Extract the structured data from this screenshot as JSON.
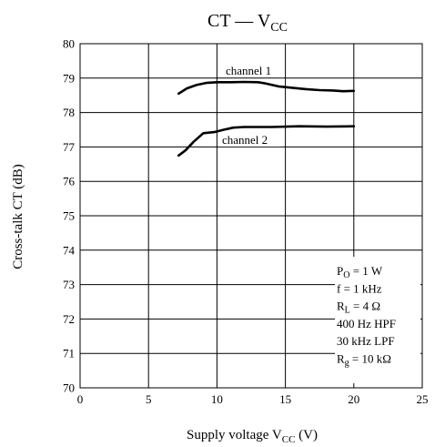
{
  "chart_data": {
    "type": "line",
    "title": {
      "main": "CT — V",
      "sub": "CC"
    },
    "xlabel": {
      "main": "Supply voltage  V",
      "sub": "CC",
      "suffix": "  (V)"
    },
    "ylabel": "Cross-talk  CT  (dB)",
    "xlim": [
      0,
      25
    ],
    "ylim": [
      70,
      80
    ],
    "x_ticks": [
      0,
      5,
      10,
      15,
      20,
      25
    ],
    "y_ticks": [
      70,
      71,
      72,
      73,
      74,
      75,
      76,
      77,
      78,
      79,
      80
    ],
    "grid": true,
    "series": [
      {
        "name": "channel 1",
        "x": [
          7.2,
          7.8,
          8.5,
          9.2,
          10,
          11,
          12,
          13,
          13.5,
          14.5,
          15.5,
          16.5,
          17.5,
          18.5,
          19.2,
          20
        ],
        "y": [
          78.55,
          78.7,
          78.8,
          78.86,
          78.88,
          78.88,
          78.89,
          78.88,
          78.85,
          78.76,
          78.72,
          78.68,
          78.65,
          78.64,
          78.62,
          78.63
        ]
      },
      {
        "name": "channel 2",
        "x": [
          7.2,
          7.7,
          8.3,
          9.0,
          9.8,
          10.5,
          11.2,
          12,
          14,
          16,
          18,
          20
        ],
        "y": [
          76.75,
          76.9,
          77.15,
          77.4,
          77.43,
          77.5,
          77.56,
          77.58,
          77.58,
          77.6,
          77.59,
          77.6
        ]
      }
    ],
    "conditions": [
      {
        "main": "P",
        "sub": "O",
        "rest": " = 1 W"
      },
      {
        "main": "f = 1 kHz",
        "sub": "",
        "rest": ""
      },
      {
        "main": "R",
        "sub": "L",
        "rest": " = 4 Ω"
      },
      {
        "main": "400 Hz HPF",
        "sub": "",
        "rest": ""
      },
      {
        "main": "30 kHz LPF",
        "sub": "",
        "rest": ""
      },
      {
        "main": "R",
        "sub": "g",
        "rest": " = 10 kΩ"
      }
    ],
    "colors": {
      "line": "#000000",
      "grid": "#000000",
      "background": "#ffffff"
    }
  }
}
